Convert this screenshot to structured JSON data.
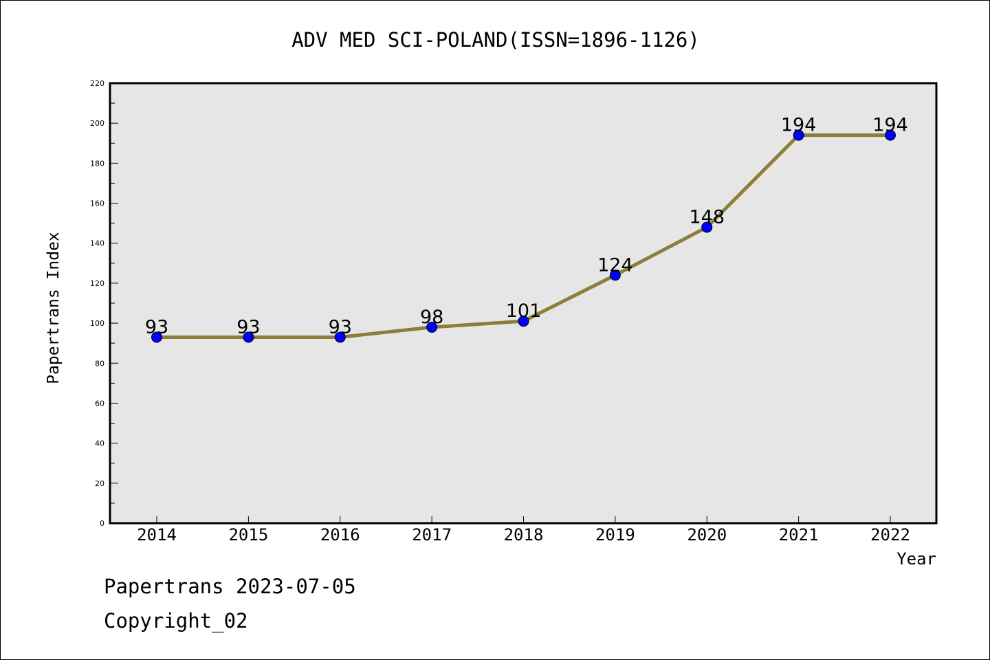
{
  "chart_data": {
    "type": "line",
    "title": "ADV MED SCI-POLAND(ISSN=1896-1126)",
    "xlabel": "Year",
    "ylabel": "Papertrans Index",
    "categories": [
      "2014",
      "2015",
      "2016",
      "2017",
      "2018",
      "2019",
      "2020",
      "2021",
      "2022"
    ],
    "series": [
      {
        "values": [
          93,
          93,
          93,
          98,
          101,
          124,
          148,
          194,
          194
        ]
      }
    ],
    "data_labels": [
      "93",
      "93",
      "93",
      "98",
      "101",
      "124",
      "148",
      "194",
      "194"
    ],
    "ylim": [
      0,
      220
    ],
    "yticks": [
      0,
      20,
      40,
      60,
      80,
      100,
      120,
      140,
      160,
      180,
      200,
      220
    ],
    "ytick_labels": [
      "0",
      "20",
      "40",
      "60",
      "80",
      "100",
      "120",
      "140",
      "160",
      "180",
      "200",
      "220"
    ],
    "grid": false,
    "line_color": "#8b7d3a",
    "marker_color": "#0000ff",
    "plot_background": "#e6e6e6"
  },
  "footer": {
    "line1": "Papertrans 2023-07-05",
    "line2": "Copyright_02"
  }
}
